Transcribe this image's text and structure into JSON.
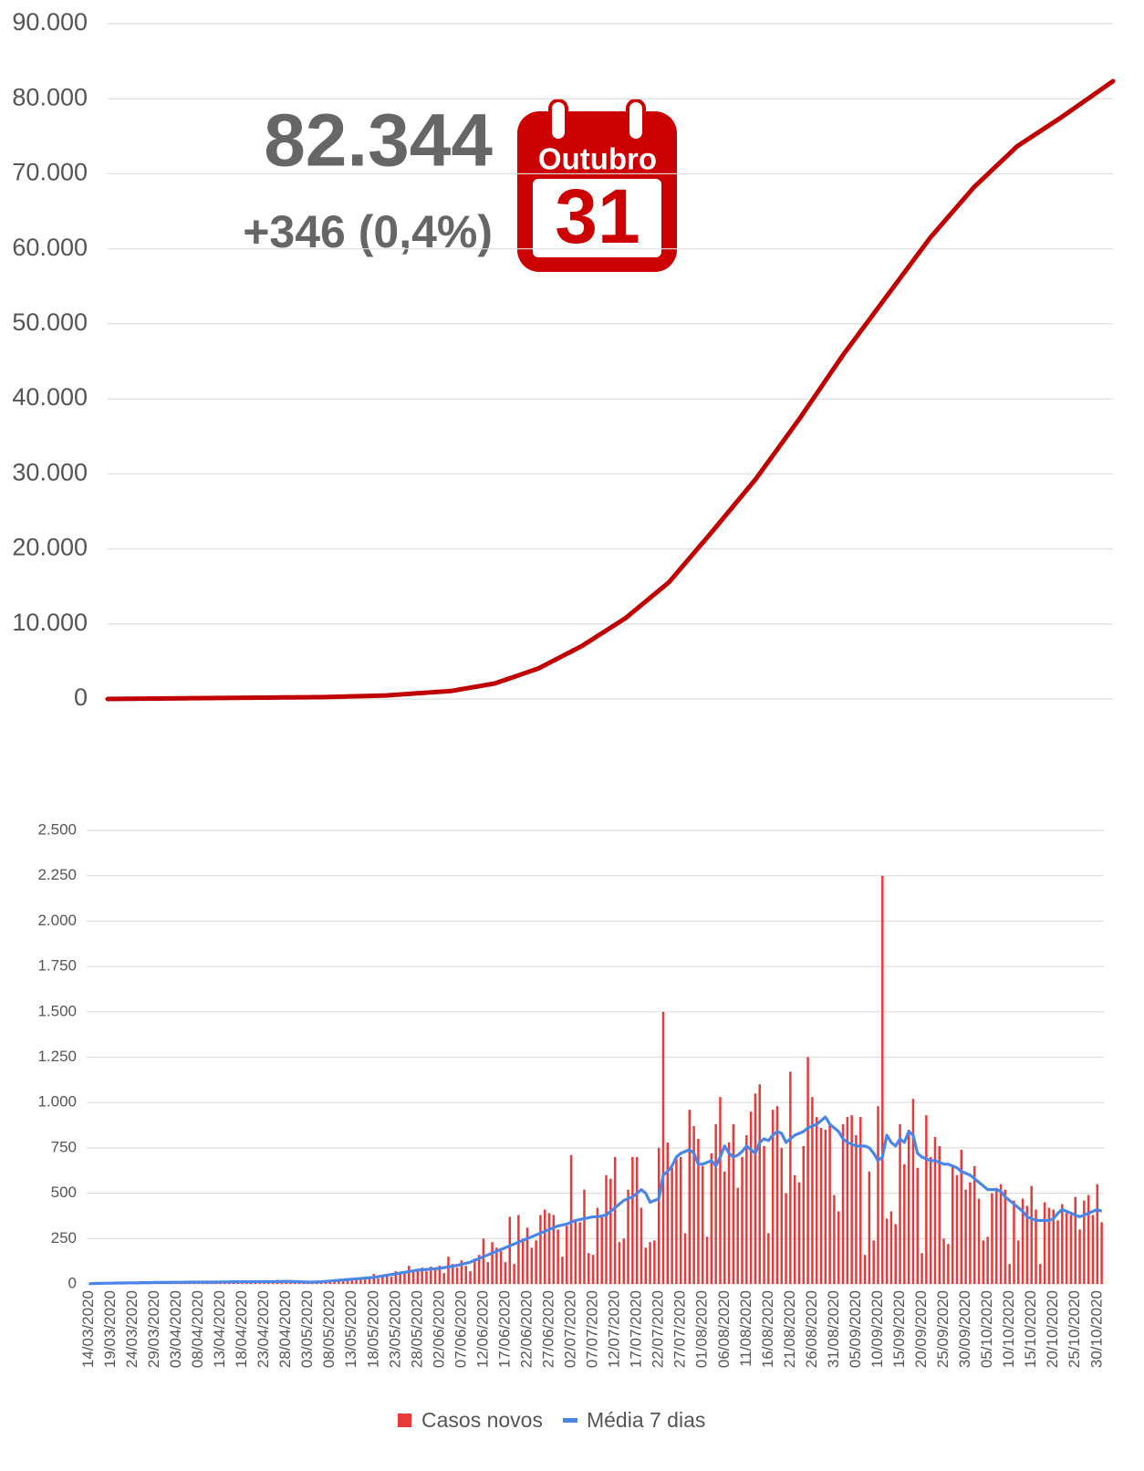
{
  "chart_data": [
    {
      "type": "line",
      "annotations": [
        "82.344",
        "+346 (0,4%)"
      ],
      "calendar": {
        "month": "Outubro",
        "day": "31"
      },
      "ylim": [
        0,
        90000
      ],
      "yticks": [
        0,
        {
          "value": 10000,
          "label": "10.000"
        },
        {
          "value": 20000,
          "label": "20.000"
        },
        {
          "value": 30000,
          "label": "30.000"
        },
        {
          "value": 40000,
          "label": "40.000"
        },
        {
          "value": 50000,
          "label": "50.000"
        },
        {
          "value": 60000,
          "label": "60.000"
        },
        {
          "value": 70000,
          "label": "70.000"
        },
        {
          "value": 80000,
          "label": "80.000"
        },
        {
          "value": 90000,
          "label": "90.000"
        }
      ],
      "grid": true,
      "series": [
        {
          "color": "#c00000",
          "values": [
            5,
            10,
            15,
            20,
            25,
            30,
            35,
            40,
            45,
            50,
            55,
            60,
            65,
            70,
            75,
            80,
            85,
            90,
            95,
            100,
            105,
            110,
            115,
            120,
            125,
            130,
            135,
            140,
            145,
            150,
            155,
            160,
            165,
            170,
            175,
            180,
            185,
            190,
            195,
            200,
            205,
            210,
            215,
            220,
            225,
            230,
            235,
            240,
            245,
            250,
            265,
            280,
            295,
            310,
            325,
            340,
            355,
            370,
            385,
            400,
            415,
            430,
            445,
            460,
            475,
            515,
            555,
            595,
            635,
            675,
            715,
            755,
            795,
            835,
            875,
            915,
            955,
            995,
            1035,
            1075,
            1175,
            1275,
            1375,
            1475,
            1575,
            1675,
            1775,
            1875,
            1975,
            2075,
            2275,
            2475,
            2675,
            2875,
            3075,
            3275,
            3475,
            3675,
            3875,
            4075,
            4375,
            4675,
            4975,
            5275,
            5575,
            5875,
            6175,
            6475,
            6775,
            7075,
            7445,
            7815,
            8185,
            8555,
            8925,
            9295,
            9665,
            10035,
            10405,
            10775,
            11255,
            11735,
            12215,
            12695,
            13175,
            13655,
            14135,
            14615,
            15095,
            15575,
            16255,
            16935,
            17615,
            18295,
            18975,
            19655,
            20335,
            21015,
            21695,
            22375,
            23075,
            23775,
            24475,
            25175,
            25875,
            26575,
            27275,
            27975,
            28675,
            29375,
            30175,
            30975,
            31775,
            32575,
            33375,
            34175,
            34975,
            35775,
            36575,
            37375,
            38225,
            39075,
            39925,
            40775,
            41625,
            42475,
            43325,
            44175,
            45025,
            45875,
            46655,
            47435,
            48215,
            48995,
            49775,
            50555,
            51335,
            52115,
            52895,
            53675,
            54455,
            55235,
            56015,
            56795,
            57575,
            58355,
            59135,
            59915,
            60695,
            61475,
            62145,
            62815,
            63485,
            64155,
            64825,
            65495,
            66165,
            66835,
            67505,
            68175,
            68725,
            69275,
            69825,
            70375,
            70925,
            71475,
            72025,
            72575,
            73125,
            73675,
            74055,
            74435,
            74815,
            75195,
            75575,
            75955,
            76335,
            76715,
            77095,
            77475,
            77880,
            78285,
            78690,
            79095,
            79500,
            79905,
            80310,
            80715,
            81120,
            81525,
            81930,
            82344
          ]
        }
      ]
    },
    {
      "type": "bar",
      "categories": [
        "14/03/2020",
        null,
        null,
        null,
        null,
        "19/03/2020",
        null,
        null,
        null,
        null,
        "24/03/2020",
        null,
        null,
        null,
        null,
        "29/03/2020",
        null,
        null,
        null,
        null,
        "03/04/2020",
        null,
        null,
        null,
        null,
        "08/04/2020",
        null,
        null,
        null,
        null,
        "13/04/2020",
        null,
        null,
        null,
        null,
        "18/04/2020",
        null,
        null,
        null,
        null,
        "23/04/2020",
        null,
        null,
        null,
        null,
        "28/04/2020",
        null,
        null,
        null,
        null,
        "03/05/2020",
        null,
        null,
        null,
        null,
        "08/05/2020",
        null,
        null,
        null,
        null,
        "13/05/2020",
        null,
        null,
        null,
        null,
        "18/05/2020",
        null,
        null,
        null,
        null,
        "23/05/2020",
        null,
        null,
        null,
        null,
        "28/05/2020",
        null,
        null,
        null,
        null,
        "02/06/2020",
        null,
        null,
        null,
        null,
        "07/06/2020",
        null,
        null,
        null,
        null,
        "12/06/2020",
        null,
        null,
        null,
        null,
        "17/06/2020",
        null,
        null,
        null,
        null,
        "22/06/2020",
        null,
        null,
        null,
        null,
        "27/06/2020",
        null,
        null,
        null,
        null,
        "02/07/2020",
        null,
        null,
        null,
        null,
        "07/07/2020",
        null,
        null,
        null,
        null,
        "12/07/2020",
        null,
        null,
        null,
        null,
        "17/07/2020",
        null,
        null,
        null,
        null,
        "22/07/2020",
        null,
        null,
        null,
        null,
        "27/07/2020",
        null,
        null,
        null,
        null,
        "01/08/2020",
        null,
        null,
        null,
        null,
        "06/08/2020",
        null,
        null,
        null,
        null,
        "11/08/2020",
        null,
        null,
        null,
        null,
        "16/08/2020",
        null,
        null,
        null,
        null,
        "21/08/2020",
        null,
        null,
        null,
        null,
        "26/08/2020",
        null,
        null,
        null,
        null,
        "31/08/2020",
        null,
        null,
        null,
        null,
        "05/09/2020",
        null,
        null,
        null,
        null,
        "10/09/2020",
        null,
        null,
        null,
        null,
        "15/09/2020",
        null,
        null,
        null,
        null,
        "20/09/2020",
        null,
        null,
        null,
        null,
        "25/09/2020",
        null,
        null,
        null,
        null,
        "30/09/2020",
        null,
        null,
        null,
        null,
        "05/10/2020",
        null,
        null,
        null,
        null,
        "10/10/2020",
        null,
        null,
        null,
        null,
        "15/10/2020",
        null,
        null,
        null,
        null,
        "20/10/2020",
        null,
        null,
        null,
        null,
        "25/10/2020",
        null,
        null,
        null,
        null,
        "30/10/2020",
        null
      ],
      "ylim": [
        0,
        2500
      ],
      "yticks": [
        0,
        250,
        500,
        750,
        {
          "value": 1000,
          "label": "1.000"
        },
        {
          "value": 1250,
          "label": "1.250"
        },
        {
          "value": 1500,
          "label": "1.500"
        },
        {
          "value": 1750,
          "label": "1.750"
        },
        {
          "value": 2000,
          "label": "2.000"
        },
        {
          "value": 2250,
          "label": "2.250"
        },
        {
          "value": 2500,
          "label": "2.500"
        }
      ],
      "grid": true,
      "series": [
        {
          "name": "Casos novos",
          "color": "#e83a3a",
          "values": [
            0,
            1,
            2,
            3,
            2,
            5,
            4,
            3,
            6,
            5,
            7,
            5,
            8,
            6,
            4,
            9,
            10,
            6,
            8,
            7,
            12,
            8,
            10,
            9,
            11,
            7,
            13,
            9,
            10,
            12,
            8,
            14,
            10,
            12,
            15,
            9,
            11,
            14,
            16,
            12,
            18,
            10,
            12,
            22,
            14,
            8,
            13,
            10,
            9,
            12,
            8,
            10,
            14,
            12,
            16,
            22,
            18,
            20,
            26,
            24,
            28,
            30,
            35,
            26,
            40,
            55,
            30,
            45,
            50,
            40,
            70,
            60,
            65,
            100,
            72,
            80,
            90,
            70,
            95,
            85,
            100,
            60,
            150,
            110,
            90,
            130,
            100,
            70,
            140,
            160,
            250,
            120,
            230,
            200,
            180,
            120,
            370,
            110,
            380,
            250,
            310,
            200,
            240,
            380,
            410,
            390,
            380,
            300,
            150,
            320,
            710,
            350,
            340,
            520,
            170,
            160,
            420,
            380,
            600,
            580,
            700,
            230,
            250,
            520,
            700,
            700,
            420,
            200,
            230,
            240,
            750,
            1500,
            780,
            640,
            690,
            700,
            280,
            960,
            870,
            800,
            650,
            260,
            720,
            880,
            1030,
            620,
            780,
            880,
            530,
            700,
            820,
            950,
            1050,
            1100,
            760,
            280,
            960,
            980,
            750,
            500,
            1170,
            600,
            560,
            760,
            1250,
            1030,
            920,
            860,
            850,
            880,
            490,
            400,
            880,
            920,
            930,
            820,
            920,
            160,
            620,
            240,
            980,
            2250,
            360,
            400,
            330,
            880,
            660,
            850,
            1020,
            640,
            170,
            930,
            700,
            810,
            760,
            250,
            220,
            650,
            600,
            740,
            520,
            560,
            650,
            470,
            240,
            260,
            500,
            530,
            550,
            520,
            110,
            460,
            240,
            470,
            430,
            540,
            410,
            110,
            450,
            420,
            410,
            350,
            440,
            390,
            380,
            480,
            300,
            460,
            490,
            380,
            550,
            340
          ]
        },
        {
          "name": "Média 7 dias",
          "type": "line",
          "color": "#4a86e8",
          "values": [
            1,
            2,
            3,
            3,
            4,
            4,
            5,
            5,
            5,
            6,
            6,
            6,
            7,
            7,
            7,
            8,
            8,
            8,
            8,
            9,
            9,
            9,
            9,
            10,
            10,
            10,
            10,
            10,
            10,
            10,
            11,
            11,
            11,
            12,
            12,
            12,
            12,
            12,
            13,
            13,
            13,
            13,
            13,
            13,
            14,
            14,
            14,
            13,
            12,
            11,
            10,
            10,
            11,
            12,
            14,
            16,
            18,
            20,
            22,
            24,
            26,
            28,
            30,
            32,
            34,
            36,
            40,
            44,
            48,
            52,
            56,
            60,
            64,
            68,
            72,
            76,
            78,
            80,
            82,
            84,
            86,
            90,
            94,
            98,
            102,
            108,
            114,
            120,
            130,
            140,
            150,
            160,
            170,
            180,
            190,
            200,
            210,
            220,
            230,
            240,
            250,
            260,
            270,
            280,
            290,
            300,
            310,
            320,
            325,
            330,
            340,
            350,
            355,
            360,
            365,
            370,
            370,
            375,
            380,
            400,
            420,
            440,
            460,
            470,
            480,
            500,
            520,
            500,
            450,
            460,
            470,
            600,
            620,
            650,
            700,
            720,
            730,
            740,
            720,
            660,
            660,
            670,
            680,
            650,
            700,
            760,
            720,
            700,
            710,
            730,
            760,
            740,
            720,
            780,
            800,
            790,
            820,
            840,
            830,
            780,
            800,
            820,
            830,
            840,
            860,
            870,
            880,
            900,
            920,
            880,
            860,
            840,
            800,
            780,
            770,
            760,
            760,
            760,
            750,
            720,
            680,
            700,
            820,
            780,
            760,
            800,
            780,
            840,
            820,
            720,
            700,
            690,
            680,
            680,
            670,
            660,
            660,
            650,
            640,
            620,
            610,
            600,
            580,
            560,
            540,
            520,
            520,
            520,
            510,
            480,
            460,
            440,
            420,
            400,
            370,
            360,
            350,
            350,
            350,
            350,
            360,
            390,
            410,
            400,
            390,
            380,
            370,
            380,
            390,
            400,
            410,
            400
          ]
        }
      ]
    }
  ]
}
